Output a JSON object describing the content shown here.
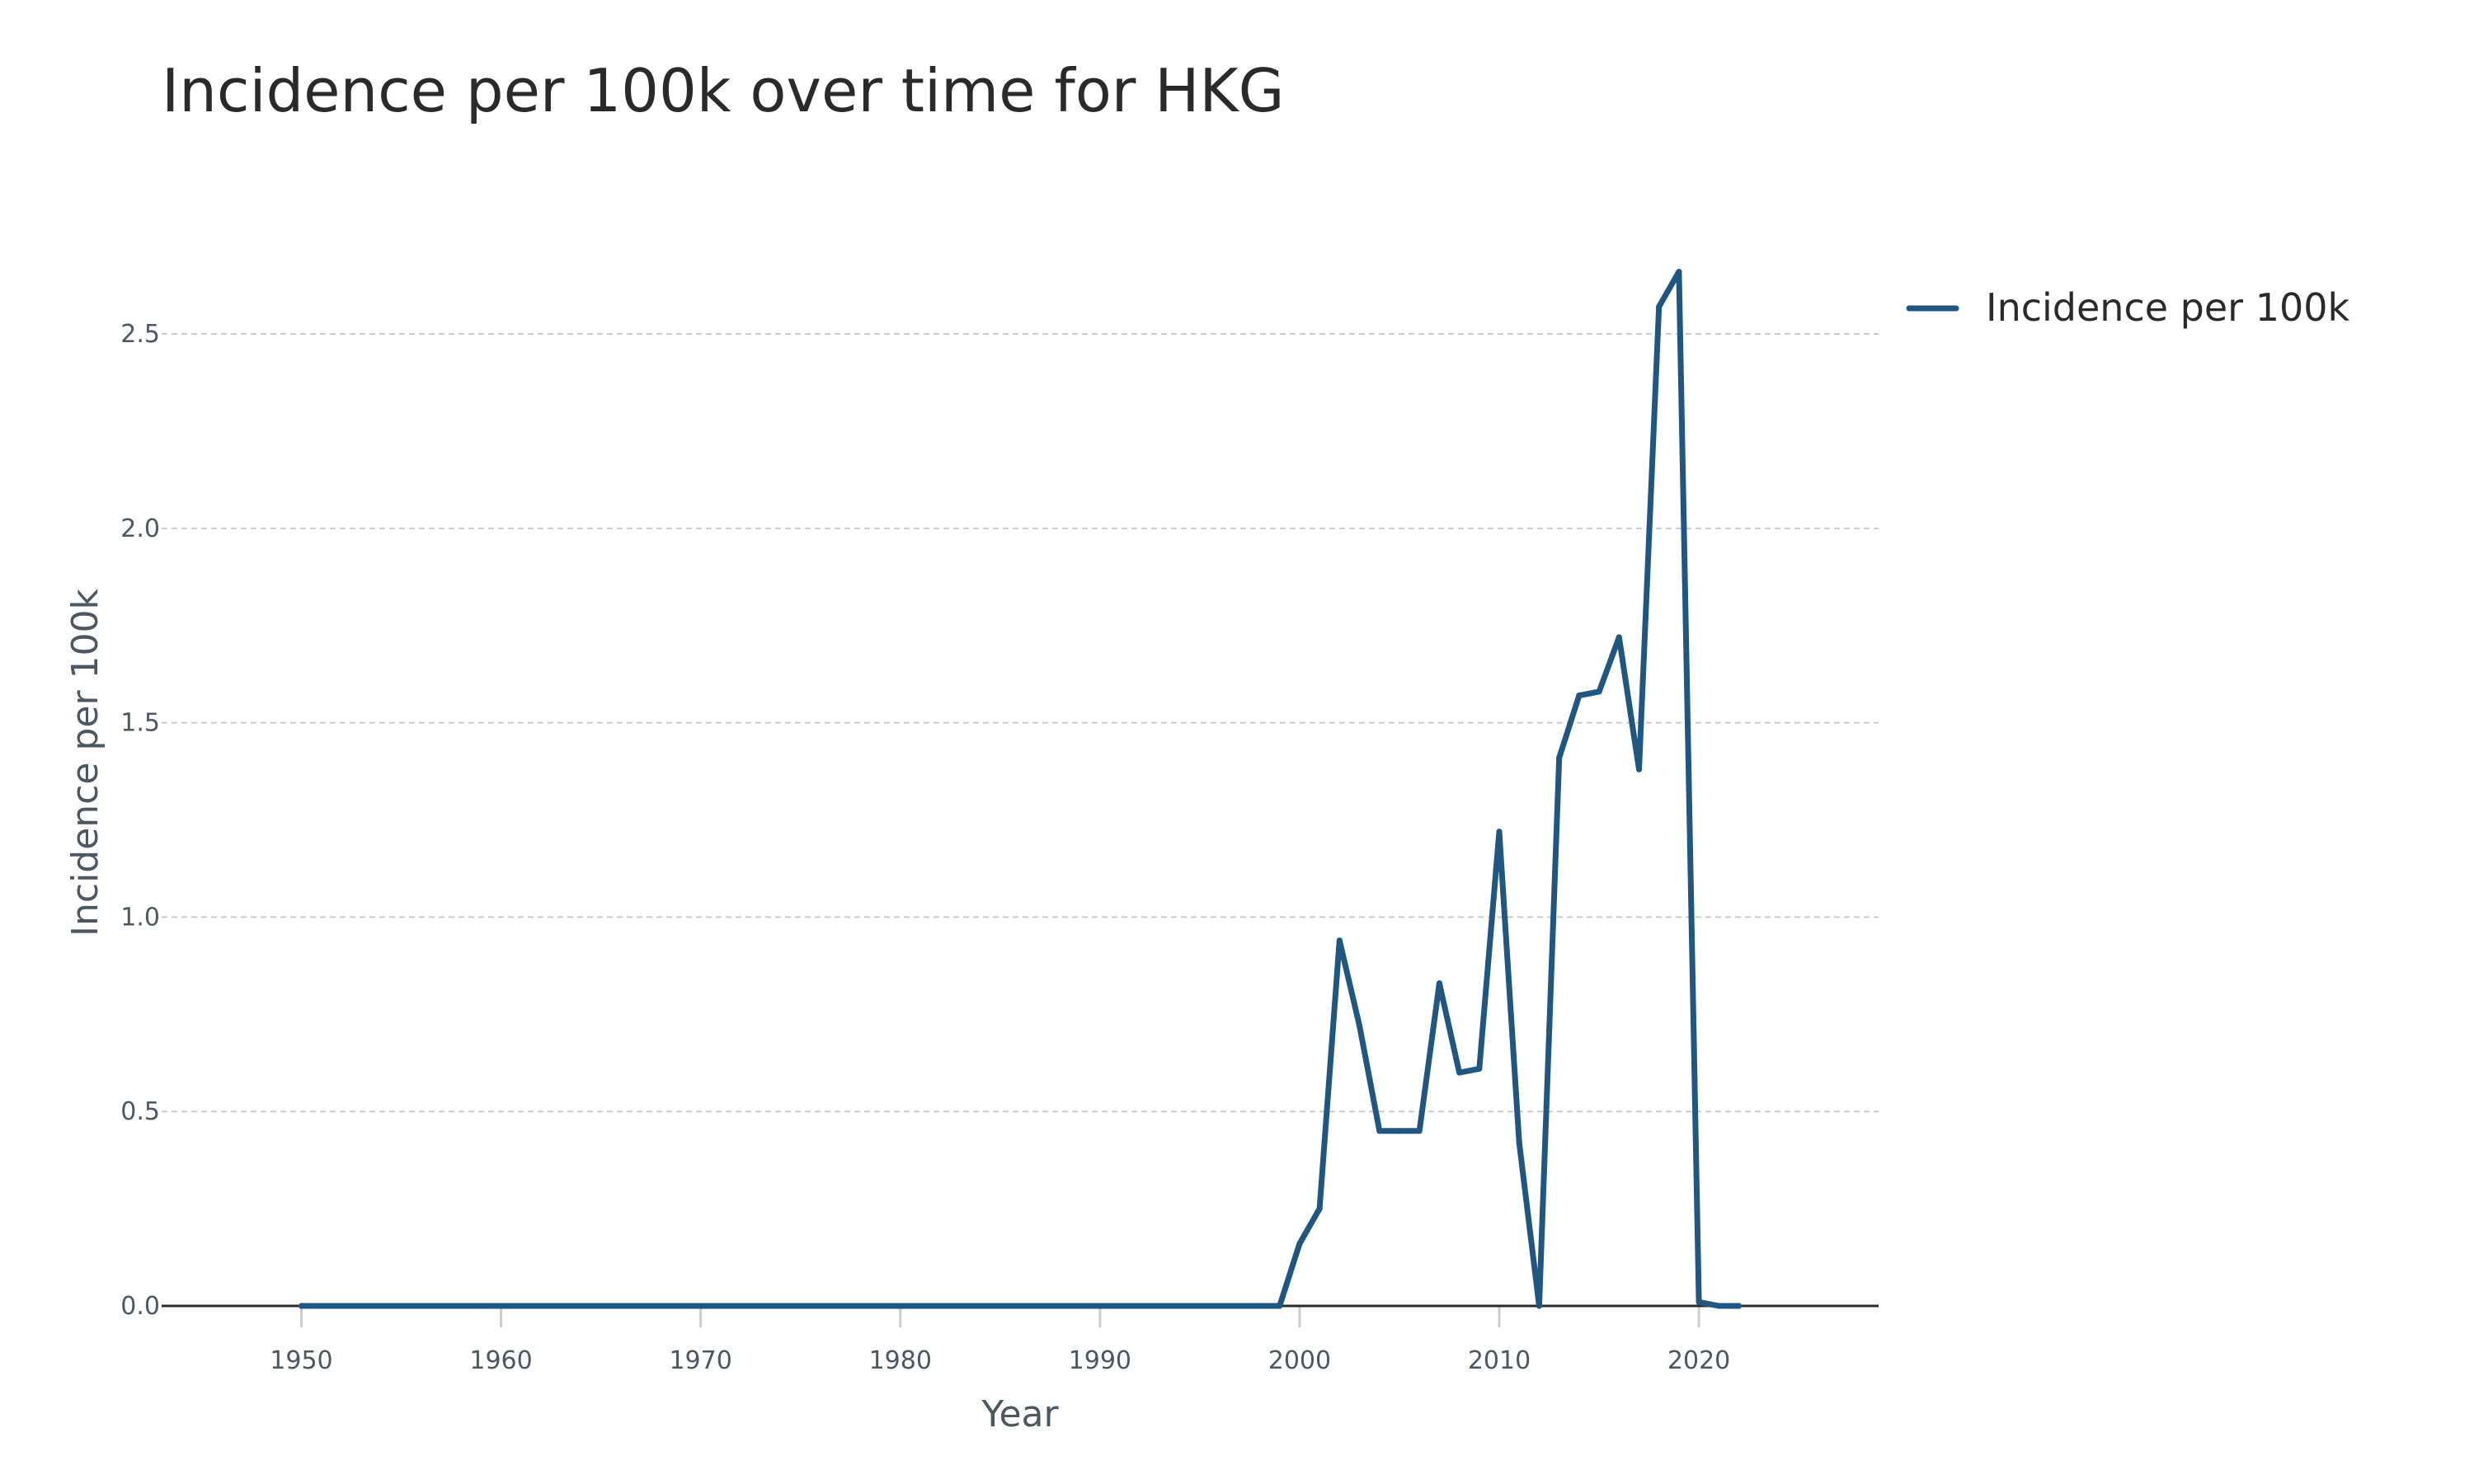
{
  "chart_data": {
    "type": "line",
    "title": "Incidence per 100k over time for HKG",
    "xlabel": "Year",
    "ylabel": "Incidence per 100k",
    "xlim": [
      1943,
      2029
    ],
    "ylim": [
      0,
      2.85
    ],
    "x_ticks": [
      1950,
      1960,
      1970,
      1980,
      1990,
      2000,
      2010,
      2020
    ],
    "x_tick_labels": [
      "1950",
      "1960",
      "1970",
      "1980",
      "1990",
      "2000",
      "2010",
      "2020"
    ],
    "y_ticks": [
      0,
      0.5,
      1,
      1.5,
      2,
      2.5
    ],
    "y_tick_labels": [
      "0.0",
      "0.5",
      "1.0",
      "1.5",
      "2.0",
      "2.5"
    ],
    "grid": true,
    "legend_position": "top-right",
    "colors": {
      "series": "#1f5782",
      "grid": "#c8ccd2",
      "axis_line": "#2a2a2a",
      "tick": "#c8ccd2"
    },
    "series": [
      {
        "name": "Incidence per 100k",
        "x": [
          1950,
          1999,
          2000,
          2001,
          2002,
          2003,
          2004,
          2005,
          2006,
          2007,
          2008,
          2009,
          2010,
          2011,
          2012,
          2013,
          2014,
          2015,
          2016,
          2017,
          2018,
          2019,
          2020,
          2021,
          2022
        ],
        "y": [
          0,
          0,
          0.16,
          0.25,
          0.94,
          0.72,
          0.45,
          0.45,
          0.45,
          0.83,
          0.6,
          0.61,
          1.22,
          0.42,
          0.0,
          1.41,
          1.57,
          1.58,
          1.72,
          1.38,
          2.57,
          2.66,
          0.01,
          0.0,
          0.0
        ]
      }
    ]
  }
}
